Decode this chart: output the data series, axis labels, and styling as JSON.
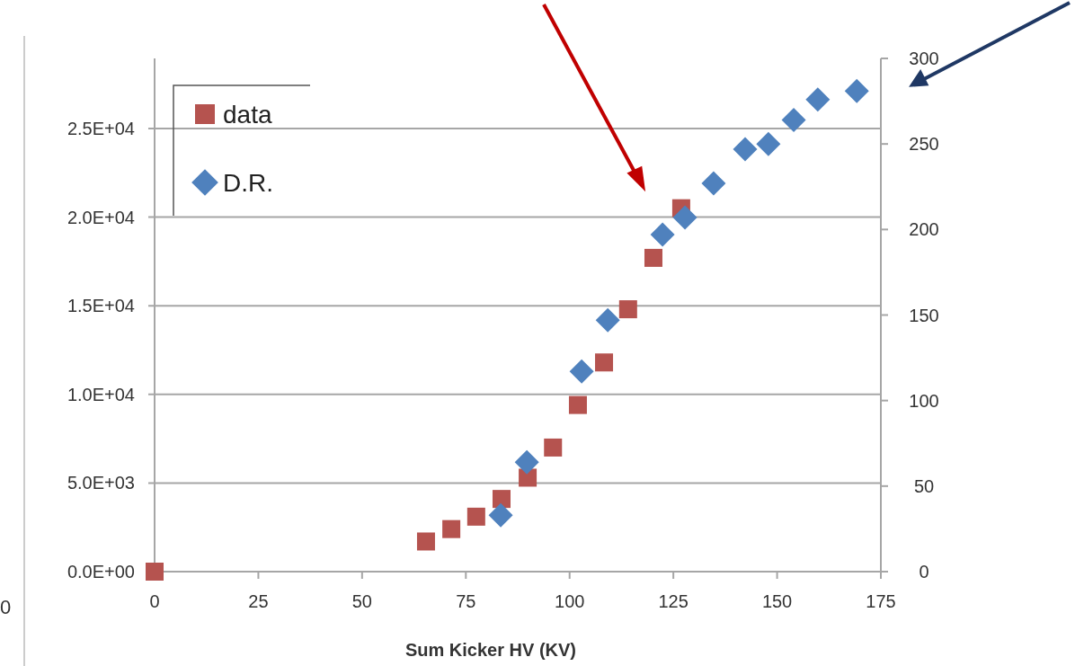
{
  "chart_data": {
    "type": "scatter",
    "xlabel": "Sum Kicker HV (KV)",
    "xlim": [
      0,
      175
    ],
    "xticks": [
      0,
      25,
      50,
      75,
      100,
      125,
      150,
      175
    ],
    "ylim": [
      0,
      28950
    ],
    "yticks": [
      {
        "value": 0,
        "label": "0.0E+00"
      },
      {
        "value": 5000,
        "label": "5.0E+03"
      },
      {
        "value": 10000,
        "label": "1.0E+04"
      },
      {
        "value": 15000,
        "label": "1.5E+04"
      },
      {
        "value": 20000,
        "label": "2.0E+04"
      },
      {
        "value": 25000,
        "label": "2.5E+04"
      }
    ],
    "y2lim": [
      0,
      300
    ],
    "y2ticks": [
      0,
      50,
      100,
      150,
      200,
      250,
      300
    ],
    "grid": "y",
    "legend": "top left",
    "annotations": [
      "0"
    ],
    "series": [
      {
        "name": "data",
        "color": "#b5534f",
        "marker": "square",
        "x": [
          0,
          65.4,
          71.5,
          77.5,
          83.6,
          89.9,
          96,
          102,
          108.3,
          114.1,
          120.2,
          126.9
        ],
        "values": [
          0,
          1700,
          2400,
          3100,
          4100,
          5300,
          7000,
          9400,
          11800,
          14800,
          17700,
          20500
        ]
      },
      {
        "name": "D.R.",
        "color": "#4f81bd",
        "marker": "diamond",
        "axis": "y2",
        "x": [
          83.4,
          89.7,
          102.9,
          109.2,
          122.4,
          127.8,
          134.7,
          142.3,
          147.9,
          154,
          159.8,
          169.2
        ],
        "values": [
          33,
          64,
          117,
          147,
          197,
          207,
          227,
          247,
          250,
          264,
          276,
          281
        ]
      }
    ]
  }
}
